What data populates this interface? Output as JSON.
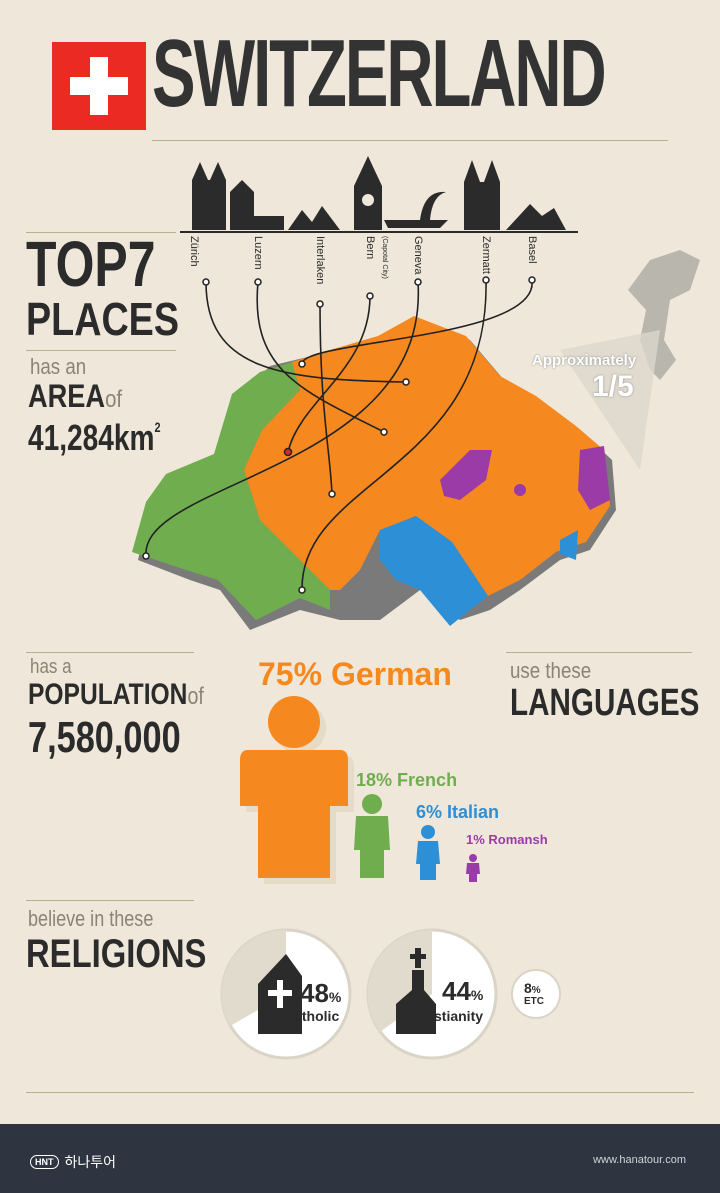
{
  "header": {
    "title": "SWITZERLAND"
  },
  "places": {
    "heading_line1": "TOP7",
    "heading_line2": "PLACES",
    "items": [
      {
        "name": "Zürich",
        "sub": ""
      },
      {
        "name": "Luzern",
        "sub": ""
      },
      {
        "name": "Interlaken",
        "sub": ""
      },
      {
        "name": "Bern",
        "sub": "(Capotal City)"
      },
      {
        "name": "Geneva",
        "sub": ""
      },
      {
        "name": "Zermatt",
        "sub": ""
      },
      {
        "name": "Basel",
        "sub": ""
      }
    ]
  },
  "area": {
    "prefix": "has an",
    "label": "AREA",
    "of": "of",
    "value": "41,284km",
    "unit_sup": "2",
    "compare_text": "Approximately",
    "compare_value": "1/5"
  },
  "population": {
    "prefix": "has a",
    "label": "POPULATION",
    "of": "of",
    "value": "7,580,000"
  },
  "languages": {
    "prefix": "use these",
    "label": "LANGUAGES",
    "items": [
      {
        "pct": "75%",
        "name": "German",
        "color": "#f5891f"
      },
      {
        "pct": "18%",
        "name": "French",
        "color": "#6fad4f"
      },
      {
        "pct": "6%",
        "name": "Italian",
        "color": "#2d8fd6"
      },
      {
        "pct": "1%",
        "name": "Romansh",
        "color": "#9b3ba8"
      }
    ]
  },
  "religions": {
    "prefix": "believe in these",
    "label": "RELIGIONS",
    "items": [
      {
        "pct": "48",
        "sym": "%",
        "name": "Catholic"
      },
      {
        "pct": "44",
        "sym": "%",
        "name": "Christianity"
      },
      {
        "pct": "8",
        "sym": "%",
        "name": "ETC"
      }
    ]
  },
  "footer": {
    "brand_badge": "HNT",
    "brand_name": "하나투어",
    "site": "www.hanatour.com"
  }
}
